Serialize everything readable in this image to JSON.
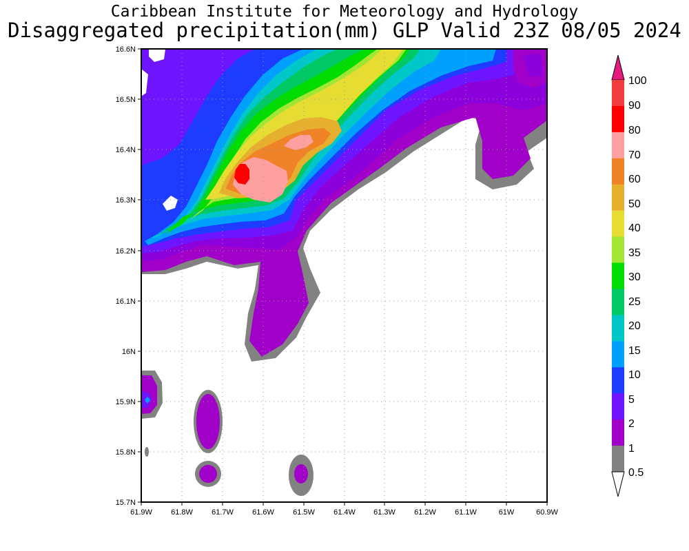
{
  "title_line1": "Caribbean Institute for Meteorology and Hydrology",
  "title_line2": "Disaggregated precipitation(mm) GLP Valid 23Z 08/05 2024",
  "lat_labels": [
    "16.6N",
    "16.5N",
    "16.4N",
    "16.3N",
    "16.2N",
    "16.1N",
    "16N",
    "15.9N",
    "15.8N",
    "15.7N"
  ],
  "lon_labels": [
    "61.9W",
    "61.8W",
    "61.7W",
    "61.6W",
    "61.5W",
    "61.4W",
    "61.3W",
    "61.2W",
    "61.1W",
    "61W",
    "60.9W"
  ],
  "colorbar": {
    "labels": [
      "100",
      "90",
      "80",
      "70",
      "60",
      "50",
      "40",
      "35",
      "30",
      "25",
      "20",
      "15",
      "10",
      "5",
      "2",
      "1",
      "0.5"
    ],
    "colors": [
      "#f03c3c",
      "#ff0000",
      "#ffa0a0",
      "#f08228",
      "#e6af2d",
      "#e6dc32",
      "#a0e632",
      "#00dc00",
      "#00c864",
      "#00c8c8",
      "#00a0ff",
      "#1e3cff",
      "#6e14ff",
      "#a000c8",
      "#828282"
    ],
    "top_arrow_color": "#e6197d",
    "bottom_arrow_color": "#ffffff"
  },
  "map": {
    "lat_range": [
      15.7,
      16.6
    ],
    "lon_range": [
      -61.9,
      -60.9
    ],
    "grid": "dotted"
  }
}
